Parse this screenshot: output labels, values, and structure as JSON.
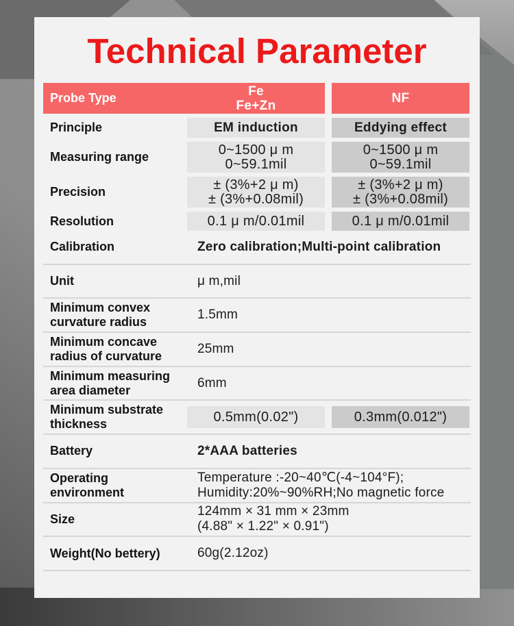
{
  "title": "Technical Parameter",
  "colors": {
    "title_red": "#eb1a1a",
    "header_red": "#f76666",
    "cell_gray_fe": "#e4e4e4",
    "cell_gray_nf": "#cbcbcb",
    "card_bg": "#f2f2f2",
    "background_gray": "#8c8c8c"
  },
  "table": {
    "header": {
      "probe": "Probe Type",
      "fe_line1": "Fe",
      "fe_line2": "Fe+Zn",
      "nf": "NF"
    },
    "principle": {
      "label": "Principle",
      "fe": "EM induction",
      "nf": "Eddying effect"
    },
    "range": {
      "label": "Measuring range",
      "fe_line1": "0~1500 μ m",
      "fe_line2": "0~59.1mil",
      "nf_line1": "0~1500 μ m",
      "nf_line2": "0~59.1mil"
    },
    "precision": {
      "label": "Precision",
      "fe_line1": "± (3%+2 μ m)",
      "fe_line2": "± (3%+0.08mil)",
      "nf_line1": "± (3%+2 μ m)",
      "nf_line2": "± (3%+0.08mil)"
    },
    "resolution": {
      "label": "Resolution",
      "fe": "0.1 μ m/0.01mil",
      "nf": "0.1 μ m/0.01mil"
    },
    "calibration": {
      "label": "Calibration",
      "value": "Zero calibration;Multi-point calibration"
    },
    "unit": {
      "label": "Unit",
      "value": "μ m,mil"
    },
    "convex": {
      "label_line1": "Minimum convex",
      "label_line2": "curvature radius",
      "value": "1.5mm"
    },
    "concave": {
      "label_line1": "Minimum concave",
      "label_line2": "radius of curvature",
      "value": "25mm"
    },
    "min_area": {
      "label_line1": "Minimum measuring",
      "label_line2": "area diameter",
      "value": "6mm"
    },
    "substrate": {
      "label_line1": "Minimum substrate",
      "label_line2": "thickness",
      "fe": "0.5mm(0.02\")",
      "nf": "0.3mm(0.012\")"
    },
    "battery": {
      "label": "Battery",
      "value": "2*AAA batteries"
    },
    "operating": {
      "label_line1": "Operating",
      "label_line2": "environment",
      "value_line1": "Temperature :-20~40℃(-4~104°F);",
      "value_line2": "Humidity:20%~90%RH;No magnetic force"
    },
    "size": {
      "label": "Size",
      "value_line1": "124mm × 31 mm × 23mm",
      "value_line2": "(4.88\" × 1.22\" × 0.91\")"
    },
    "weight": {
      "label": "Weight(No bettery)",
      "value": "60g(2.12oz)"
    }
  }
}
